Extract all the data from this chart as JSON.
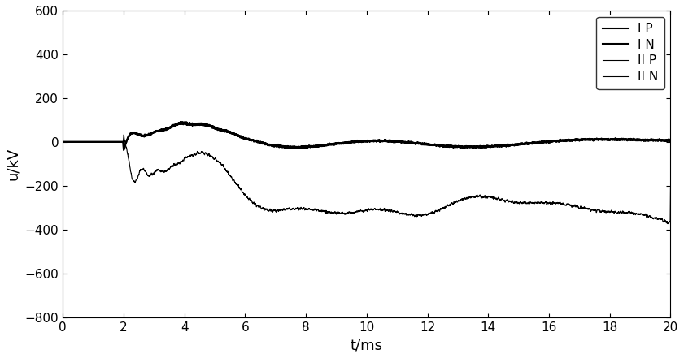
{
  "title": "",
  "xlabel": "t/ms",
  "ylabel": "u/kV",
  "xlim": [
    0,
    20
  ],
  "ylim": [
    -800,
    600
  ],
  "xticks": [
    0,
    2,
    4,
    6,
    8,
    10,
    12,
    14,
    16,
    18,
    20
  ],
  "yticks": [
    -800,
    -600,
    -400,
    -200,
    0,
    200,
    400,
    600
  ],
  "legend_labels": [
    "I P",
    "I N",
    "II P",
    "II N"
  ],
  "legend_loc": "upper right",
  "linewidths": [
    1.5,
    1.5,
    0.8,
    0.8
  ],
  "fault_time": 2.0,
  "n_points": 6000,
  "t_max": 20.0,
  "background": "#ffffff"
}
